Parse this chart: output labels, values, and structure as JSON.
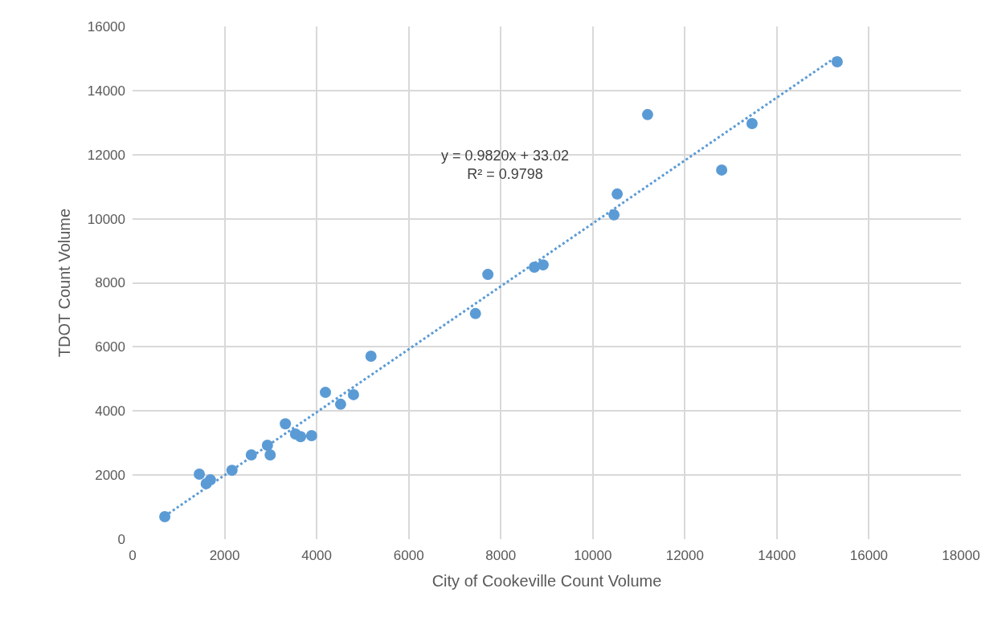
{
  "chart_data": {
    "type": "scatter",
    "xlabel": "City of Cookeville Count Volume",
    "ylabel": "TDOT Count Volume",
    "xlim": [
      0,
      18000
    ],
    "xticks": [
      0,
      2000,
      4000,
      6000,
      8000,
      10000,
      12000,
      14000,
      16000,
      18000
    ],
    "ylim": [
      0,
      16000
    ],
    "yticks": [
      0,
      2000,
      4000,
      6000,
      8000,
      10000,
      12000,
      14000,
      16000
    ],
    "grid": true,
    "marker": "circle",
    "annotations": [
      "y = 0.9820x + 33.02\nR² = 0.9798"
    ],
    "series": [
      {
        "color": "#5b9bd5",
        "x": [
          700,
          1450,
          1600,
          1690,
          2160,
          2580,
          2930,
          2990,
          3320,
          3540,
          3650,
          3890,
          4190,
          4520,
          4800,
          5180,
          7450,
          7720,
          8730,
          8920,
          10460,
          10530,
          11190,
          12800,
          13460,
          15310
        ],
        "values": [
          700,
          2030,
          1730,
          1850,
          2150,
          2630,
          2930,
          2630,
          3600,
          3280,
          3200,
          3230,
          4580,
          4210,
          4510,
          5710,
          7040,
          8260,
          8490,
          8560,
          10120,
          10770,
          13250,
          11520,
          12970,
          14900
        ]
      },
      {
        "type": "line",
        "color": "#5b9bd5",
        "line_style": "dotted",
        "marker": "none",
        "x": [
          700,
          15310
        ],
        "values": [
          720,
          15070
        ]
      }
    ]
  }
}
